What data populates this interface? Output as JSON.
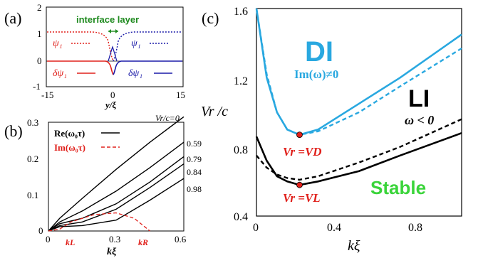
{
  "panel_a": {
    "label": "(a)",
    "annotation": "interface layer",
    "xlabel": "y/ξ",
    "legend": {
      "psi1_left": "ψ₁",
      "psi1_right": "ψ₁",
      "dpsi1_left": "δψ₁",
      "dpsi1_right": "δψ₁"
    },
    "xticks": [
      "-15",
      "0",
      "15"
    ],
    "yticks": [
      "2",
      "1",
      "0",
      "-1"
    ],
    "colors": {
      "red": "#e0201b",
      "blue": "#1a1aa8",
      "green": "#1f8a1f"
    }
  },
  "panel_b": {
    "label": "(b)",
    "xlabel": "kξ",
    "xticks": [
      "0",
      "0.3",
      "0.6"
    ],
    "yticks": [
      "0.3",
      "0.2",
      "0.1",
      "0"
    ],
    "legend_re": "Re(ω₀τ)",
    "legend_im": "Im(ω₀τ)",
    "top_label": "Vr/c=0",
    "curve_labels": [
      "0.59",
      "0.79",
      "0.84",
      "0.98"
    ],
    "kL": "kL",
    "kR": "kR"
  },
  "panel_c": {
    "label": "(c)",
    "ylabel": "Vr /c",
    "xlabel": "kξ",
    "xticks": [
      "0",
      "0.4",
      "0.8"
    ],
    "yticks": [
      "1.6",
      "1.2",
      "0.8",
      "0.4"
    ],
    "region_DI": "DI",
    "region_DI_cond": "Im(ω)≠0",
    "region_LI": "LI",
    "region_LI_cond": "ω < 0",
    "region_stable": "Stable",
    "point_D": "Vr =VD",
    "point_L": "Vr =VL",
    "colors": {
      "DI": "#29a8e0",
      "stable": "#3ad43a",
      "point": "#e0201b"
    }
  },
  "chart_data": [
    {
      "type": "line",
      "panel": "a",
      "xlim": [
        -15,
        15
      ],
      "ylim": [
        -1,
        2
      ],
      "series": [
        {
          "name": "ψ1",
          "x": [
            -15,
            -6,
            -2,
            -1,
            0,
            1,
            2,
            6,
            15
          ],
          "values": [
            1.1,
            1.1,
            1.05,
            0.9,
            0.0,
            0.9,
            1.05,
            1.1,
            1.1
          ]
        },
        {
          "name": "δψ1",
          "x": [
            -15,
            -3,
            -1,
            0,
            1,
            3,
            15
          ],
          "values": [
            0,
            0,
            -0.2,
            -0.6,
            -0.2,
            0,
            0
          ]
        }
      ]
    },
    {
      "type": "line",
      "panel": "b",
      "xlim": [
        0,
        0.6
      ],
      "ylim": [
        0,
        0.3
      ],
      "series": [
        {
          "name": "Vr/c=0",
          "x": [
            0,
            0.05,
            0.15,
            0.3,
            0.45,
            0.6
          ],
          "values": [
            0,
            0.035,
            0.09,
            0.17,
            0.245,
            0.315
          ]
        },
        {
          "name": "0.59",
          "x": [
            0,
            0.05,
            0.15,
            0.3,
            0.45,
            0.6
          ],
          "values": [
            0,
            0.025,
            0.055,
            0.11,
            0.175,
            0.245
          ]
        },
        {
          "name": "0.79",
          "x": [
            0,
            0.05,
            0.15,
            0.3,
            0.45,
            0.6
          ],
          "values": [
            0,
            0.02,
            0.035,
            0.075,
            0.135,
            0.205
          ]
        },
        {
          "name": "0.84",
          "x": [
            0,
            0.05,
            0.15,
            0.3,
            0.45,
            0.6
          ],
          "values": [
            0,
            0.015,
            0.025,
            0.06,
            0.12,
            0.185
          ]
        },
        {
          "name": "0.98",
          "x": [
            0,
            0.05,
            0.15,
            0.3,
            0.45,
            0.6
          ],
          "values": [
            0,
            0.012,
            0.015,
            0.03,
            0.085,
            0.145
          ]
        },
        {
          "name": "Im(ω0τ)",
          "x": [
            0,
            0.05,
            0.1,
            0.2,
            0.3,
            0.38,
            0.45
          ],
          "values": [
            0,
            0.005,
            0.025,
            0.045,
            0.05,
            0.035,
            0
          ]
        }
      ]
    },
    {
      "type": "line",
      "panel": "c",
      "xlim": [
        0,
        1.0
      ],
      "ylim": [
        0.4,
        1.6
      ],
      "series": [
        {
          "name": "DI solid",
          "x": [
            0,
            0.05,
            0.1,
            0.15,
            0.21,
            0.3,
            0.5,
            0.7,
            1.0
          ],
          "values": [
            1.6,
            1.2,
            1.0,
            0.9,
            0.87,
            0.9,
            1.05,
            1.2,
            1.45
          ]
        },
        {
          "name": "DI dashed",
          "x": [
            0,
            0.05,
            0.1,
            0.15,
            0.21,
            0.3,
            0.5,
            0.7,
            1.0
          ],
          "values": [
            1.6,
            1.22,
            1.0,
            0.9,
            0.87,
            0.89,
            1.0,
            1.15,
            1.37
          ]
        },
        {
          "name": "LI dashed",
          "x": [
            0,
            0.05,
            0.1,
            0.15,
            0.21,
            0.3,
            0.5,
            0.7,
            1.0
          ],
          "values": [
            0.75,
            0.68,
            0.64,
            0.62,
            0.61,
            0.63,
            0.71,
            0.8,
            0.96
          ]
        },
        {
          "name": "LI solid",
          "x": [
            0,
            0.05,
            0.1,
            0.15,
            0.21,
            0.3,
            0.5,
            0.7,
            1.0
          ],
          "values": [
            0.86,
            0.72,
            0.63,
            0.6,
            0.58,
            0.6,
            0.66,
            0.75,
            0.88
          ]
        }
      ],
      "points": [
        {
          "label": "Vr=VD",
          "x": 0.21,
          "y": 0.87
        },
        {
          "label": "Vr=VL",
          "x": 0.21,
          "y": 0.58
        }
      ]
    }
  ]
}
